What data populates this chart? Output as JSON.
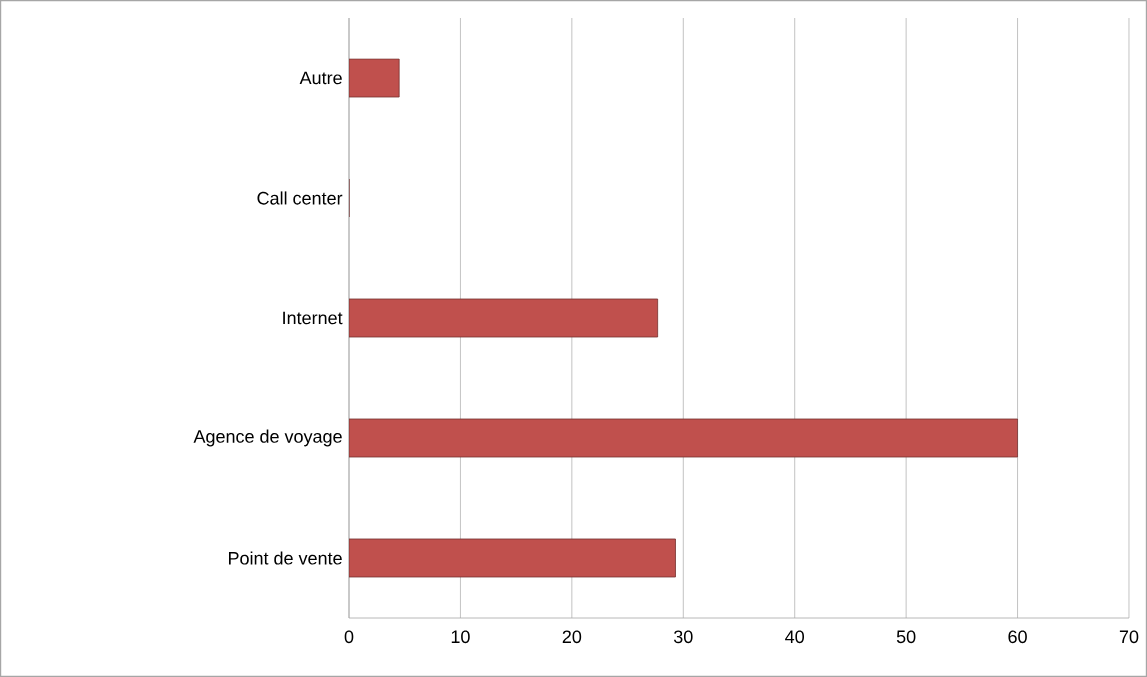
{
  "chart_data": {
    "type": "bar",
    "orientation": "horizontal",
    "categories": [
      "Autre",
      "Call center",
      "Internet",
      "Agence de voyage",
      "Point de vente"
    ],
    "values": [
      4.5,
      0,
      27.7,
      60,
      29.3
    ],
    "color": "#c0504d",
    "xlim": [
      0,
      70
    ],
    "xticks": [
      0,
      10,
      20,
      30,
      40,
      50,
      60,
      70
    ],
    "grid": "x"
  }
}
